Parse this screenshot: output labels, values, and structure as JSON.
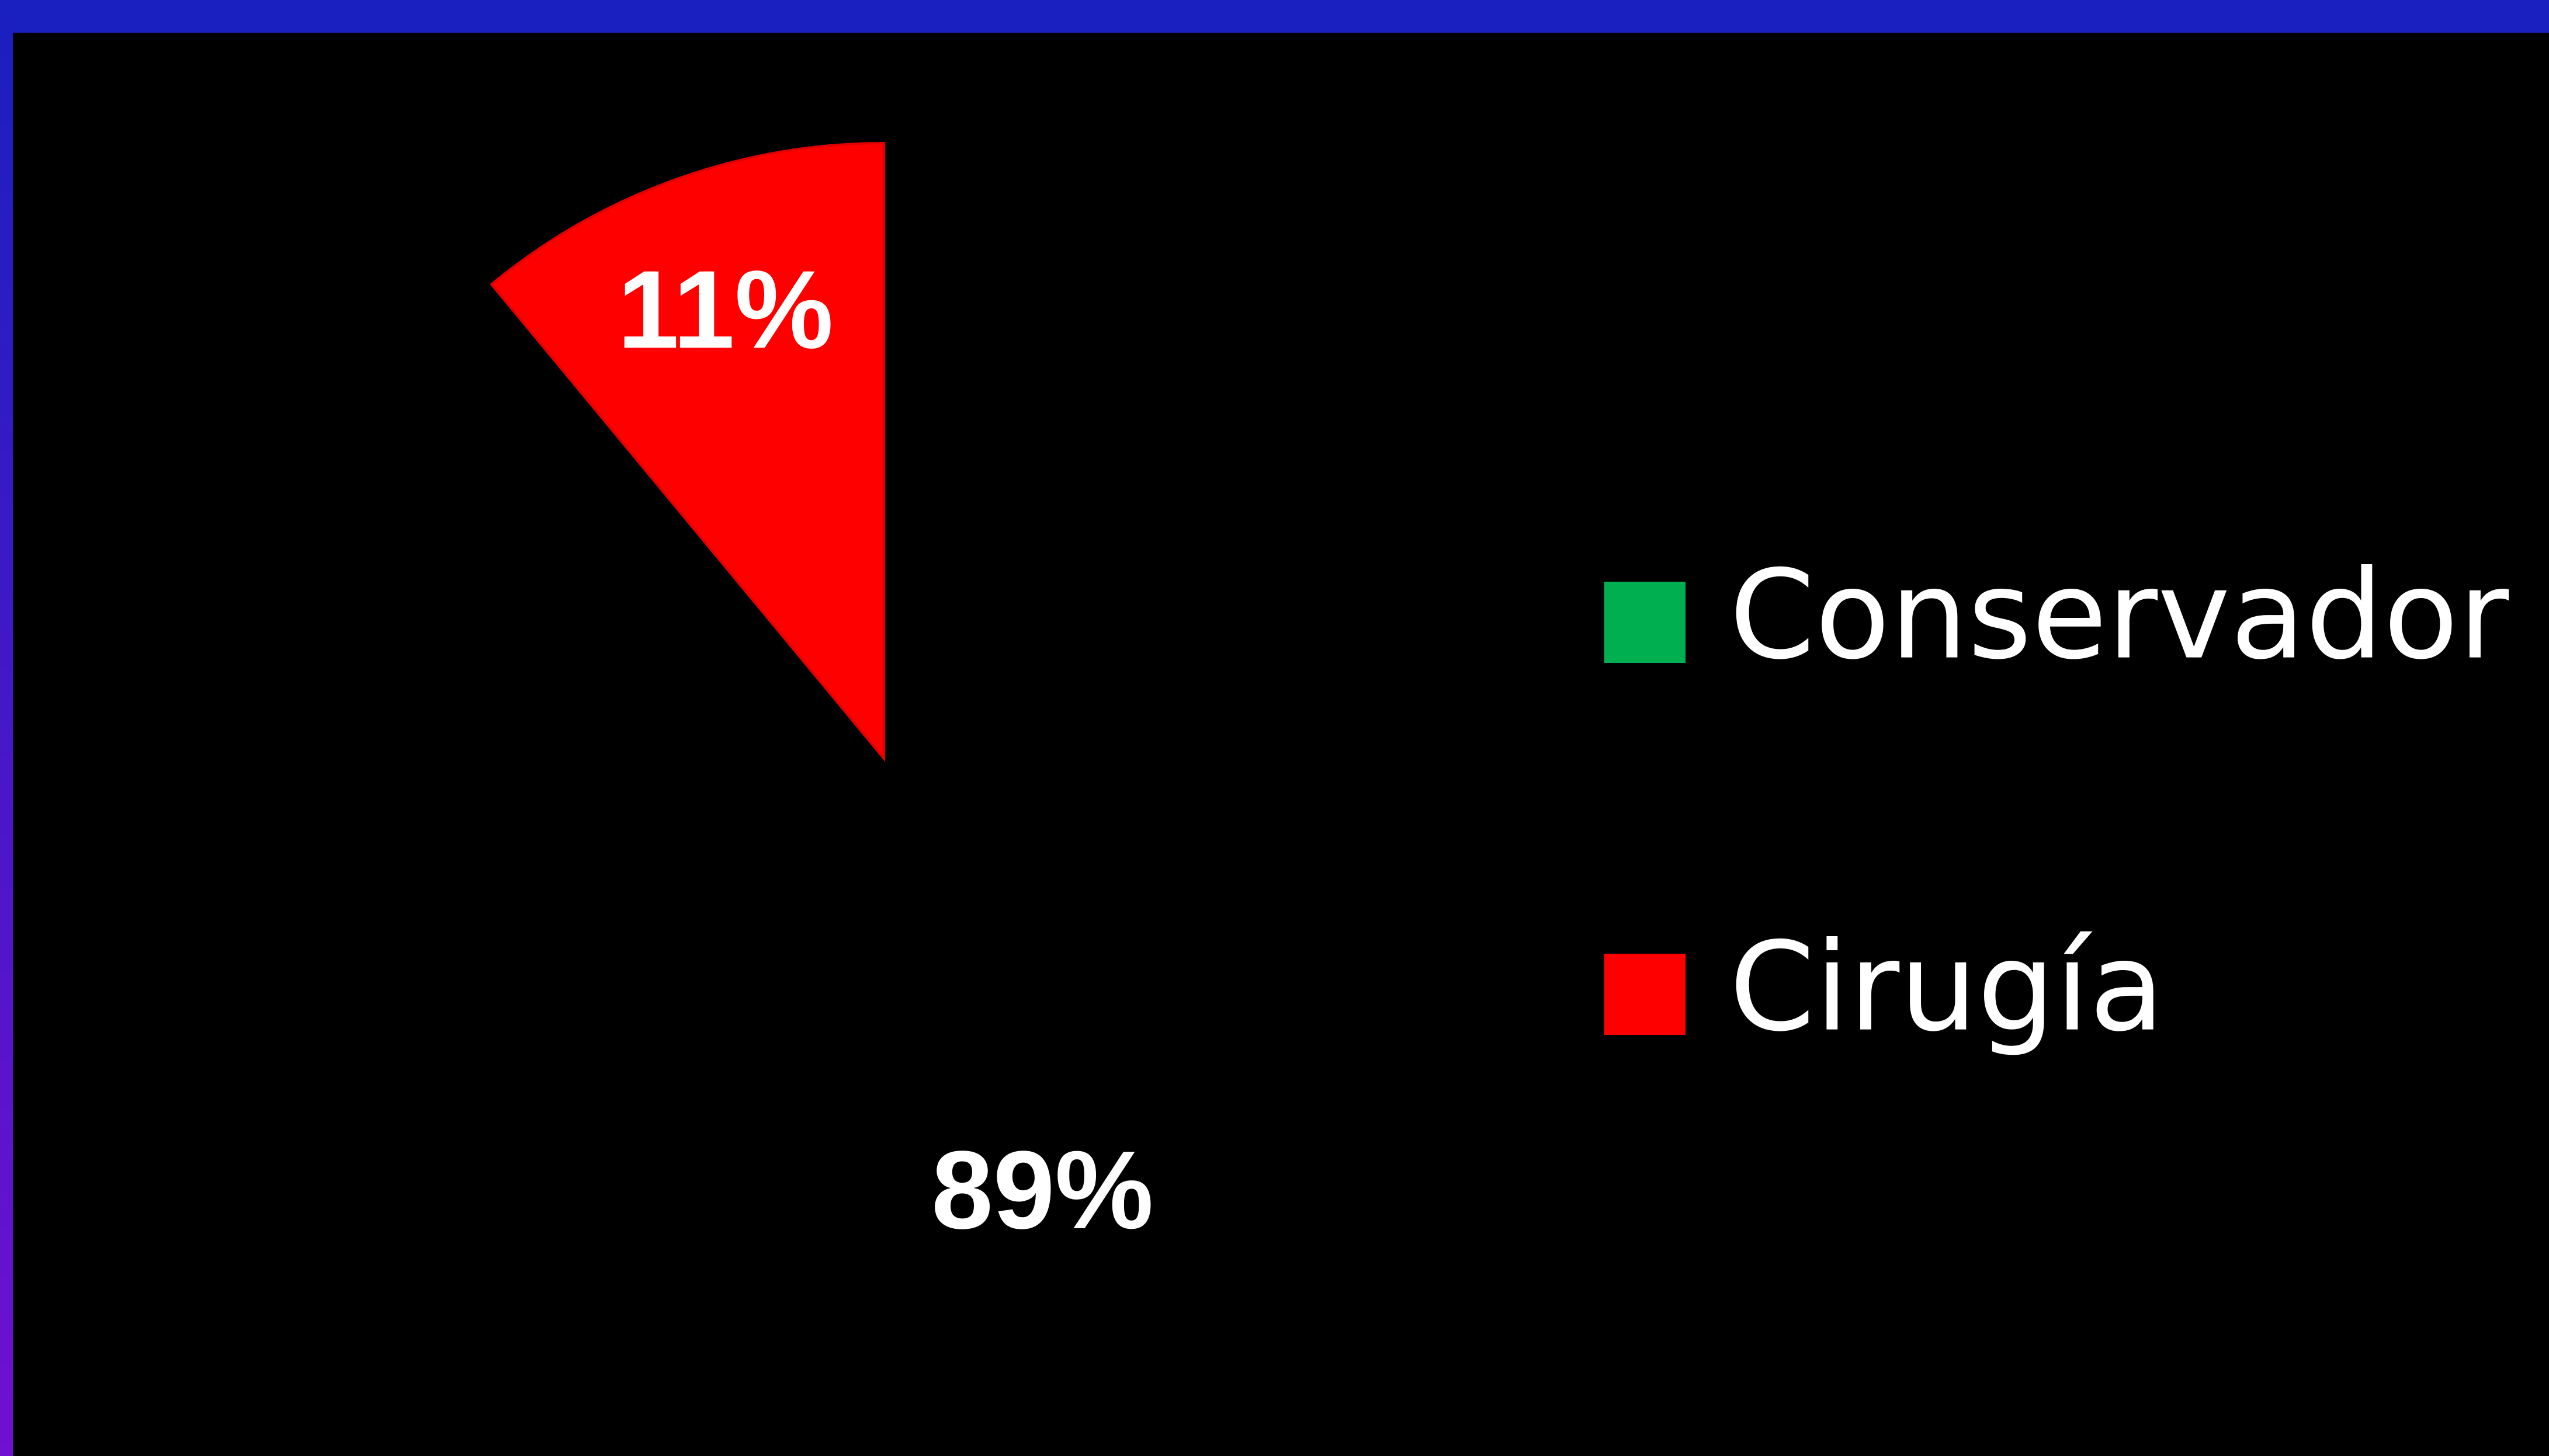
{
  "chart_data": {
    "type": "pie",
    "categories": [
      "Conservador",
      "Cirugía"
    ],
    "values": [
      89,
      11
    ],
    "value_labels": [
      "89%",
      "11%"
    ],
    "colors": [
      "#00b050",
      "#ff0000"
    ],
    "slice_colors": [
      "#000000",
      "#ff0000"
    ],
    "legend": "right"
  }
}
